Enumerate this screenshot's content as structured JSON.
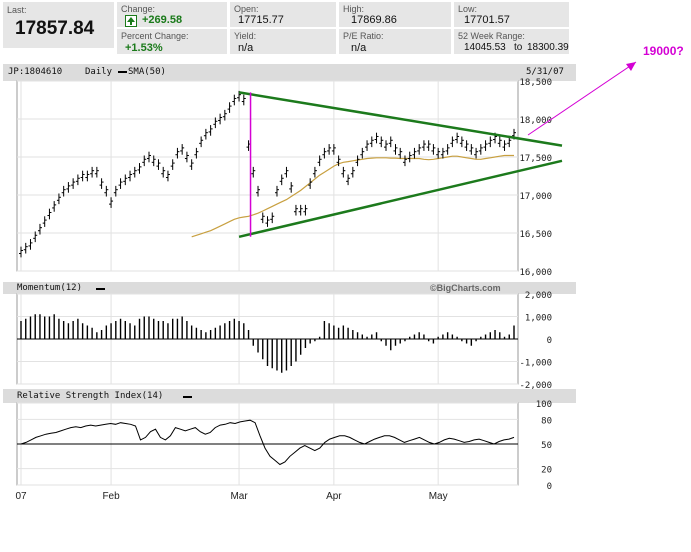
{
  "quote": {
    "last_label": "Last:",
    "last_value": "17857.84",
    "change_label": "Change:",
    "change_value": "+269.58",
    "pct_label": "Percent Change:",
    "pct_value": "+1.53%",
    "open_label": "Open:",
    "open_value": "17715.77",
    "yield_label": "Yield:",
    "yield_value": "n/a",
    "high_label": "High:",
    "high_value": "17869.86",
    "pe_label": "P/E Ratio:",
    "pe_value": "n/a",
    "low_label": "Low:",
    "low_value": "17701.57",
    "range_label": "52 Week Range:",
    "range_low": "14045.53",
    "range_to": "to",
    "range_high": "18300.39",
    "up_arrow_icon": "up-arrow-icon",
    "accent_green": "#1a7a1a"
  },
  "annotation": {
    "text": "19000?",
    "color": "#d400d4"
  },
  "price_panel": {
    "symbol": "JP:1804610",
    "period": "Daily",
    "sma_label": "SMA(50)",
    "date": "5/31/07",
    "watermark": "©BigCharts.com"
  },
  "momentum_panel": {
    "title": "Momentum(12)"
  },
  "rsi_panel": {
    "title": "Relative Strength Index(14)"
  },
  "x_axis_labels": [
    "07",
    "Feb",
    "Mar",
    "Apr",
    "May"
  ],
  "chart_data": [
    {
      "type": "line",
      "title": "JP:1804610 Daily",
      "ylim": [
        16000,
        18500
      ],
      "y_ticks": [
        16000,
        16500,
        17000,
        17500,
        18000,
        18500
      ],
      "y_tick_labels": [
        "16,000",
        "16,500",
        "17,000",
        "17,500",
        "18,000",
        "18,500"
      ],
      "x_tick_labels": [
        "07",
        "Feb",
        "Mar",
        "Apr",
        "May"
      ],
      "grid": true,
      "colors": {
        "price": "#000000",
        "sma": "#c8a040",
        "trend": "#1c7a1c",
        "marker": "#d400d4"
      },
      "series": [
        {
          "name": "",
          "values": [
            16250,
            16300,
            16350,
            16450,
            16550,
            16650,
            16750,
            16850,
            16950,
            17050,
            17100,
            17150,
            17200,
            17250,
            17250,
            17300,
            17300,
            17150,
            17050,
            16900,
            17050,
            17150,
            17200,
            17250,
            17300,
            17350,
            17450,
            17500,
            17450,
            17400,
            17300,
            17250,
            17400,
            17550,
            17600,
            17500,
            17400,
            17550,
            17700,
            17800,
            17850,
            17950,
            18000,
            18050,
            18150,
            18250,
            18300,
            18250,
            17650,
            17300,
            17050,
            16700,
            16650,
            16700,
            17050,
            17200,
            17300,
            17100,
            16800,
            16800,
            16800,
            17150,
            17300,
            17450,
            17550,
            17600,
            17600,
            17450,
            17300,
            17200,
            17300,
            17450,
            17550,
            17650,
            17700,
            17750,
            17700,
            17650,
            17700,
            17600,
            17550,
            17450,
            17500,
            17550,
            17600,
            17650,
            17650,
            17600,
            17550,
            17550,
            17600,
            17700,
            17750,
            17700,
            17650,
            17600,
            17550,
            17600,
            17650,
            17700,
            17750,
            17700,
            17650,
            17700,
            17800
          ]
        },
        {
          "name": "SMA(50)",
          "values": [
            16450,
            16470,
            16490,
            16510,
            16530,
            16560,
            16590,
            16620,
            16650,
            16680,
            16700,
            16710,
            16720,
            16740,
            16760,
            16790,
            16820,
            16850,
            16880,
            16910,
            16940,
            16980,
            17020,
            17060,
            17110,
            17160,
            17210,
            17260,
            17300,
            17340,
            17380,
            17410,
            17430,
            17440,
            17450,
            17460,
            17470,
            17480,
            17485,
            17490,
            17490,
            17490,
            17485,
            17485,
            17480,
            17480,
            17480,
            17480,
            17480,
            17470,
            17465,
            17470,
            17480,
            17490,
            17500,
            17510,
            17510,
            17500,
            17490,
            17480,
            17470,
            17470,
            17480,
            17490,
            17500,
            17510,
            17520,
            17520,
            17520
          ]
        }
      ],
      "trendlines": [
        {
          "name": "upper",
          "x": [
            0,
            1
          ],
          "y": [
            18350,
            17650
          ]
        },
        {
          "name": "lower",
          "x": [
            0,
            1
          ],
          "y": [
            16450,
            17450
          ]
        }
      ]
    },
    {
      "type": "bar",
      "title": "Momentum(12)",
      "ylim": [
        -2000,
        2000
      ],
      "y_ticks": [
        -2000,
        -1000,
        0,
        1000,
        2000
      ],
      "y_tick_labels": [
        "-2,000",
        "-1,000",
        "0",
        "1,000",
        "2,000"
      ],
      "grid": true,
      "values": [
        800,
        900,
        1000,
        1100,
        1100,
        1000,
        1000,
        1100,
        900,
        800,
        700,
        800,
        900,
        700,
        600,
        500,
        300,
        400,
        600,
        700,
        800,
        900,
        800,
        700,
        600,
        900,
        1000,
        1000,
        900,
        800,
        800,
        700,
        900,
        900,
        1000,
        800,
        600,
        500,
        400,
        300,
        400,
        500,
        600,
        700,
        800,
        900,
        800,
        700,
        400,
        -300,
        -600,
        -900,
        -1200,
        -1300,
        -1400,
        -1500,
        -1400,
        -1200,
        -1000,
        -700,
        -400,
        -200,
        -100,
        100,
        800,
        700,
        600,
        500,
        600,
        500,
        400,
        300,
        200,
        100,
        200,
        300,
        -100,
        -300,
        -500,
        -300,
        -200,
        -100,
        100,
        200,
        300,
        200,
        -100,
        -200,
        100,
        200,
        300,
        200,
        100,
        -100,
        -200,
        -300,
        -100,
        100,
        200,
        300,
        400,
        300,
        100,
        200,
        600
      ]
    },
    {
      "type": "line",
      "title": "Relative Strength Index(14)",
      "ylim": [
        0,
        100
      ],
      "y_ticks": [
        0,
        20,
        50,
        80,
        100
      ],
      "y_tick_labels": [
        "0",
        "20",
        "50",
        "80",
        "100"
      ],
      "grid": true,
      "reference_line": 50,
      "values": [
        50,
        52,
        55,
        58,
        60,
        62,
        63,
        64,
        66,
        68,
        70,
        71,
        70,
        72,
        73,
        72,
        73,
        74,
        75,
        74,
        76,
        75,
        74,
        72,
        55,
        58,
        65,
        68,
        58,
        55,
        60,
        70,
        68,
        66,
        68,
        70,
        65,
        62,
        64,
        70,
        73,
        74,
        76,
        75,
        77,
        78,
        79,
        76,
        60,
        45,
        35,
        30,
        25,
        28,
        35,
        40,
        45,
        48,
        45,
        42,
        45,
        52,
        56,
        58,
        60,
        60,
        58,
        55,
        52,
        50,
        53,
        56,
        58,
        60,
        60,
        58,
        55,
        52,
        54,
        56,
        58,
        55,
        52,
        50,
        52,
        55,
        57,
        56,
        54,
        52,
        53,
        55,
        56,
        54,
        52,
        50,
        53,
        55,
        56,
        58
      ]
    }
  ]
}
